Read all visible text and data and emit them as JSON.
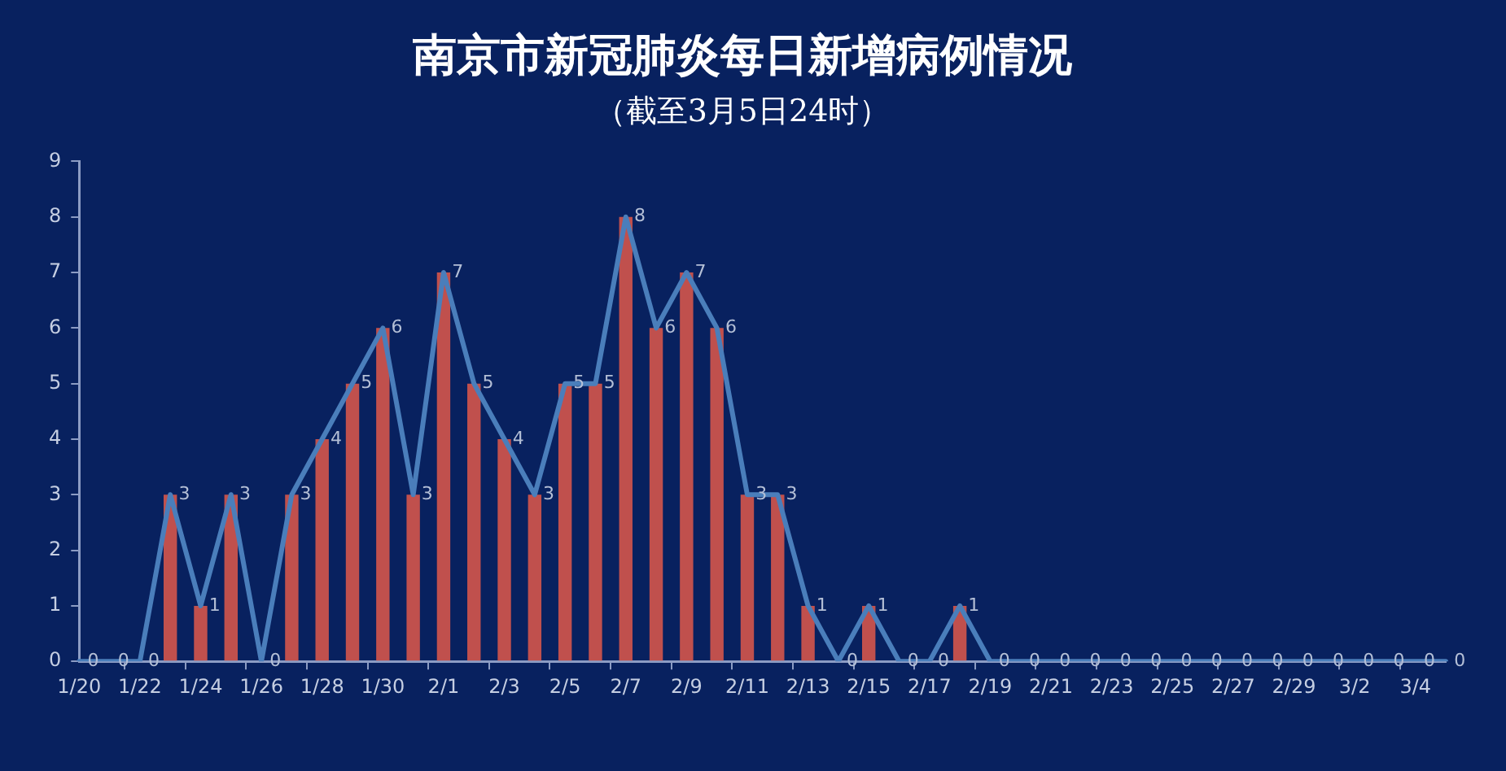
{
  "chart_data": {
    "type": "bar",
    "title": "南京市新冠肺炎每日新增病例情况",
    "subtitle": "（截至3月5日24时）",
    "categories": [
      "1/20",
      null,
      "1/22",
      null,
      "1/24",
      null,
      "1/26",
      null,
      "1/28",
      null,
      "1/30",
      null,
      "2/1",
      null,
      "2/3",
      null,
      "2/5",
      null,
      "2/7",
      null,
      "2/9",
      null,
      "2/11",
      null,
      "2/13",
      null,
      "2/15",
      null,
      "2/17",
      null,
      "2/19",
      null,
      "2/21",
      null,
      "2/23",
      null,
      "2/25",
      null,
      "2/27",
      null,
      "2/29",
      null,
      "3/2",
      null,
      "3/4",
      null
    ],
    "series": [
      {
        "color": "#c0504d",
        "values": [
          0,
          0,
          0,
          3,
          1,
          3,
          0,
          3,
          4,
          5,
          6,
          3,
          7,
          5,
          4,
          3,
          5,
          5,
          8,
          6,
          7,
          6,
          3,
          3,
          1,
          0,
          1,
          0,
          0,
          1,
          0,
          0,
          0,
          0,
          0,
          0,
          0,
          0,
          0,
          0,
          0,
          0,
          0,
          0,
          0,
          0
        ],
        "value_labels": [
          "0",
          "0",
          "0",
          "3",
          "1",
          "3",
          "0",
          "3",
          "4",
          "5",
          "6",
          "3",
          "7",
          "5",
          "4",
          "3",
          "5",
          "5",
          "8",
          "6",
          "7",
          "6",
          "3",
          "3",
          "1",
          "0",
          "1",
          "0",
          "0",
          "1",
          "0",
          "0",
          "0",
          "0",
          "0",
          "0",
          "0",
          "0",
          "0",
          "0",
          "0",
          "0",
          "0",
          "0",
          "0",
          "0"
        ]
      },
      {
        "type": "line",
        "color": "#4a7ebb",
        "values": [
          0,
          0,
          0,
          3,
          1,
          3,
          0,
          3,
          4,
          5,
          6,
          3,
          7,
          5,
          4,
          3,
          5,
          5,
          8,
          6,
          7,
          6,
          3,
          3,
          1,
          0,
          1,
          0,
          0,
          1,
          0,
          0,
          0,
          0,
          0,
          0,
          0,
          0,
          0,
          0,
          0,
          0,
          0,
          0,
          0,
          0
        ]
      }
    ],
    "ylim": [
      0,
      9
    ],
    "yticks": [
      0,
      1,
      2,
      3,
      4,
      5,
      6,
      7,
      8,
      9
    ],
    "grid": false,
    "legend": false,
    "marker": "none"
  }
}
